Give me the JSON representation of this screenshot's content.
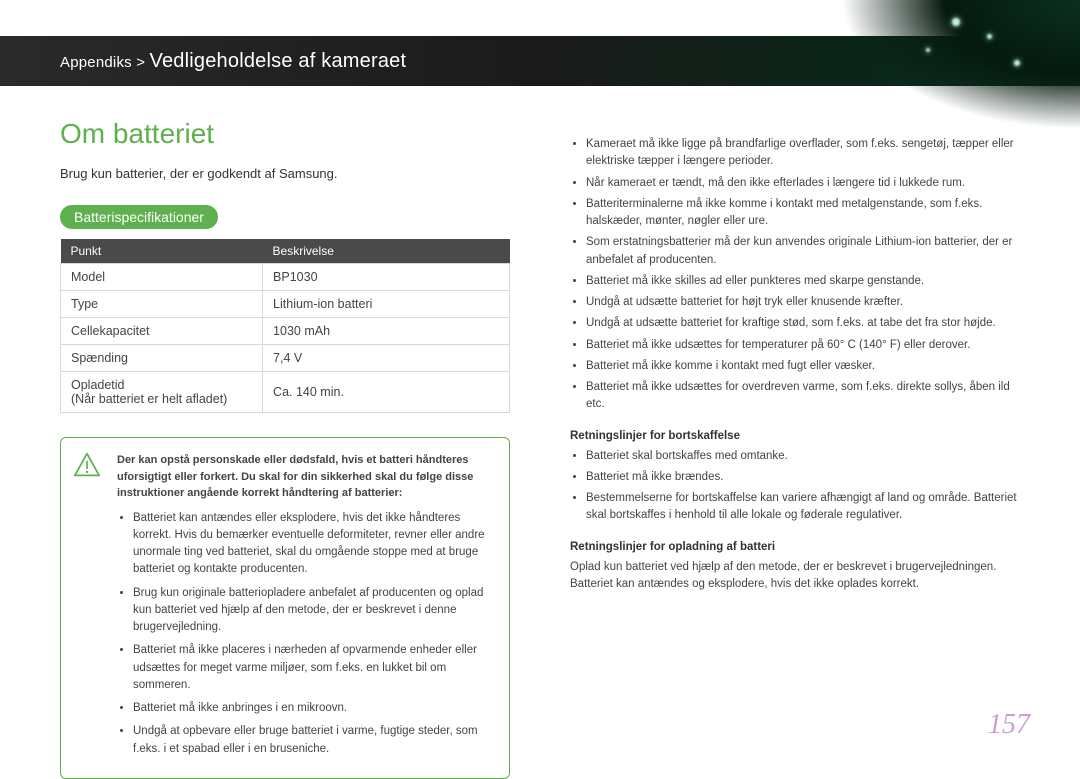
{
  "header": {
    "breadcrumb_prefix": "Appendiks > ",
    "breadcrumb_main": "Vedligeholdelse af kameraet",
    "band_gradient_from": "#2a2a2a",
    "band_gradient_to": "#0f3a28"
  },
  "section_title": "Om batteriet",
  "intro_text": "Brug kun batterier, der er godkendt af Samsung.",
  "spec_pill": "Batterispecifikationer",
  "spec_table": {
    "header_bg": "#4a4a4a",
    "border_color": "#d8d8d8",
    "columns": [
      "Punkt",
      "Beskrivelse"
    ],
    "rows": [
      [
        "Model",
        "BP1030"
      ],
      [
        "Type",
        "Lithium-ion batteri"
      ],
      [
        "Cellekapacitet",
        "1030 mAh"
      ],
      [
        "Spænding",
        "7,4 V"
      ],
      [
        "Opladetid\n(Når batteriet er helt afladet)",
        "Ca. 140 min."
      ]
    ]
  },
  "warning": {
    "border_color": "#5fb04e",
    "icon_name": "warning-triangle-icon",
    "intro": "Der kan opstå personskade eller dødsfald, hvis et batteri håndteres uforsigtigt eller forkert. Du skal for din sikkerhed skal du følge disse instruktioner angående korrekt håndtering af batterier:",
    "items": [
      "Batteriet kan antændes eller eksplodere, hvis det ikke håndteres korrekt. Hvis du bemærker eventuelle deformiteter, revner eller andre unormale ting ved batteriet, skal du omgående stoppe med at bruge batteriet og kontakte producenten.",
      "Brug kun originale batteriopladere anbefalet af producenten og oplad kun batteriet ved hjælp af den metode, der er beskrevet i denne brugervejledning.",
      "Batteriet må ikke placeres i nærheden af opvarmende enheder eller udsættes for meget varme miljøer, som f.eks. en lukket bil om sommeren.",
      "Batteriet må ikke anbringes i en mikroovn.",
      "Undgå at opbevare eller bruge batteriet i varme, fugtige steder, som f.eks. i et spabad eller i en bruseniche."
    ]
  },
  "col2_items": [
    "Kameraet må ikke ligge på brandfarlige overflader, som f.eks. sengetøj, tæpper eller elektriske tæpper i længere perioder.",
    "Når kameraet er tændt, må den ikke efterlades i længere tid i lukkede rum.",
    "Batteriterminalerne må ikke komme i kontakt med metalgenstande, som f.eks. halskæder, mønter, nøgler eller ure.",
    "Som erstatningsbatterier må der kun anvendes originale Lithium-ion batterier, der er anbefalet af producenten.",
    "Batteriet må ikke skilles ad eller punkteres med skarpe genstande.",
    "Undgå at udsætte batteriet for højt tryk eller knusende kræfter.",
    "Undgå at udsætte batteriet for kraftige stød, som f.eks. at tabe det fra stor højde.",
    "Batteriet må ikke udsættes for temperaturer på 60° C (140° F) eller derover.",
    "Batteriet må ikke komme i kontakt med fugt eller væsker.",
    "Batteriet må ikke udsættes for overdreven varme, som f.eks. direkte sollys, åben ild etc."
  ],
  "col2_sections": [
    {
      "heading": "Retningslinjer for bortskaffelse",
      "items": [
        "Batteriet skal bortskaffes med omtanke.",
        "Batteriet må ikke brændes.",
        "Bestemmelserne for bortskaffelse kan variere afhængigt af land og område. Batteriet skal bortskaffes i henhold til alle lokale og føderale regulativer."
      ]
    },
    {
      "heading": "Retningslinjer for opladning af batteri",
      "paragraph": "Oplad kun batteriet ved hjælp af den metode, der er beskrevet i brugervejledningen. Batteriet kan antændes og eksplodere, hvis det ikke oplades korrekt."
    }
  ],
  "page_number": "157",
  "colors": {
    "accent_green": "#5fb04e",
    "pagenum_color": "#c9a0d4"
  }
}
